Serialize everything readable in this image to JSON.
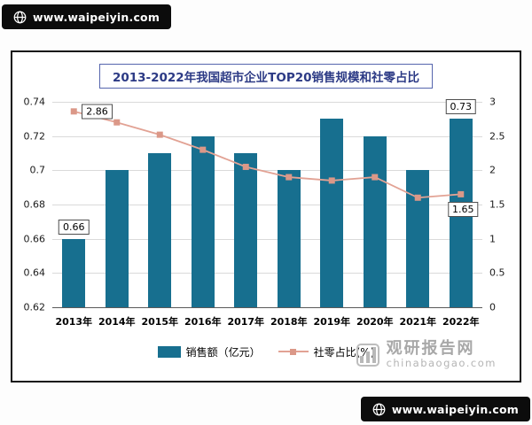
{
  "badges": {
    "top": "www.waipeiyin.com",
    "bottom": "www.waipeiyin.com"
  },
  "chart": {
    "title": "2013-2022年我国超市企业TOP20销售规模和社零占比"
  },
  "chart_data": {
    "type": "bar+line",
    "title": "2013-2022年我国超市企业TOP20销售规模和社零占比",
    "categories": [
      "2013年",
      "2014年",
      "2015年",
      "2016年",
      "2017年",
      "2018年",
      "2019年",
      "2020年",
      "2021年",
      "2022年"
    ],
    "series": [
      {
        "name": "销售额（亿元）",
        "type": "bar",
        "axis": "left",
        "values": [
          0.66,
          0.7,
          0.71,
          0.72,
          0.71,
          0.7,
          0.73,
          0.72,
          0.7,
          0.73
        ],
        "color": "#176F8F"
      },
      {
        "name": "社零占比(%)",
        "type": "line",
        "axis": "right",
        "values": [
          2.86,
          2.7,
          2.52,
          2.3,
          2.05,
          1.9,
          1.85,
          1.9,
          1.6,
          1.65
        ],
        "color": "#E2A294",
        "marker_color": "#DB9888"
      }
    ],
    "left_axis": {
      "min": 0.62,
      "max": 0.74,
      "step": 0.02,
      "ticks": [
        "0.62",
        "0.64",
        "0.66",
        "0.68",
        "0.7",
        "0.72",
        "0.74"
      ]
    },
    "right_axis": {
      "min": 0,
      "max": 3,
      "step": 0.5,
      "ticks": [
        "0",
        "0.5",
        "1",
        "1.5",
        "2",
        "2.5",
        "3"
      ]
    },
    "annotations": [
      {
        "text": "0.66",
        "target": "bar",
        "index": 0
      },
      {
        "text": "0.73",
        "target": "bar",
        "index": 9
      },
      {
        "text": "2.86",
        "target": "line",
        "index": 0
      },
      {
        "text": "1.65",
        "target": "line",
        "index": 9
      }
    ],
    "legend_position": "bottom",
    "grid": "horizontal"
  },
  "watermark": {
    "name": "观研报告网",
    "domain": "chinabaogao.com"
  }
}
